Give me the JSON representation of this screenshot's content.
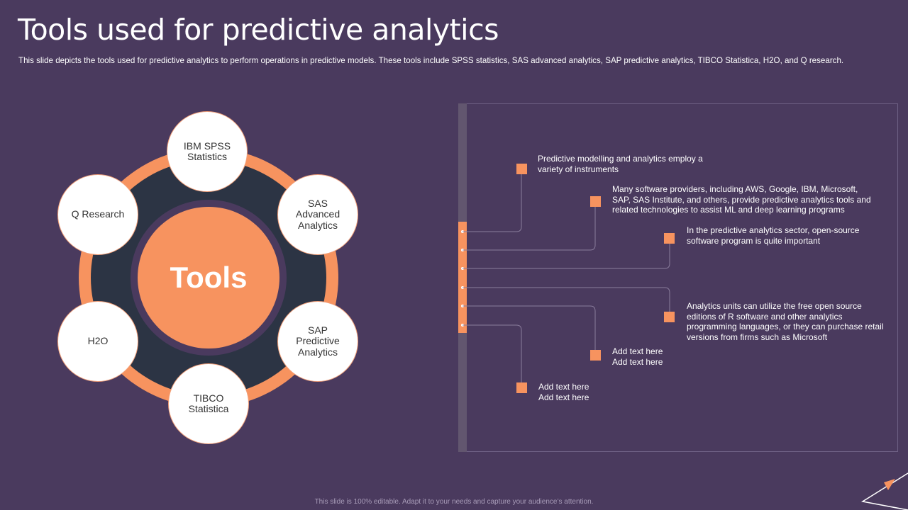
{
  "slide": {
    "title": "Tools used for predictive analytics",
    "subtitle": "This slide depicts the tools used for predictive analytics to perform operations in predictive models. These tools include SPSS statistics, SAS advanced analytics, SAP predictive analytics, TIBCO Statistica, H2O, and Q research.",
    "footer": "This slide is 100% editable. Adapt it to your needs and capture your audience’s attention."
  },
  "diagram": {
    "center_label": "Tools",
    "nodes": [
      {
        "label": "IBM SPSS\nStatistics"
      },
      {
        "label": "SAS\nAdvanced\nAnalytics"
      },
      {
        "label": "SAP\nPredictive\nAnalytics"
      },
      {
        "label": "TIBCO\nStatistica"
      },
      {
        "label": "H2O"
      },
      {
        "label": "Q Research"
      }
    ]
  },
  "points": [
    {
      "text": "Predictive modelling and analytics employ a\nvariety of instruments"
    },
    {
      "text": "Many software providers, including AWS, Google, IBM, Microsoft,\nSAP, SAS Institute, and others, provide predictive analytics tools and\nrelated technologies to assist ML and deep learning programs"
    },
    {
      "text": "In the predictive analytics sector, open-source\nsoftware program is quite important"
    },
    {
      "text": "Analytics units can utilize the free open source\neditions of R software and other analytics\nprogramming languages, or they can purchase retail\nversions from firms such as Microsoft"
    },
    {
      "text": "Add text here\nAdd text here"
    },
    {
      "text": "Add text here\nAdd text here"
    }
  ],
  "colors": {
    "background": "#4a3a5e",
    "accent": "#f7935f",
    "ring_dark": "#2c3444",
    "connector": "#8a7d9c"
  }
}
